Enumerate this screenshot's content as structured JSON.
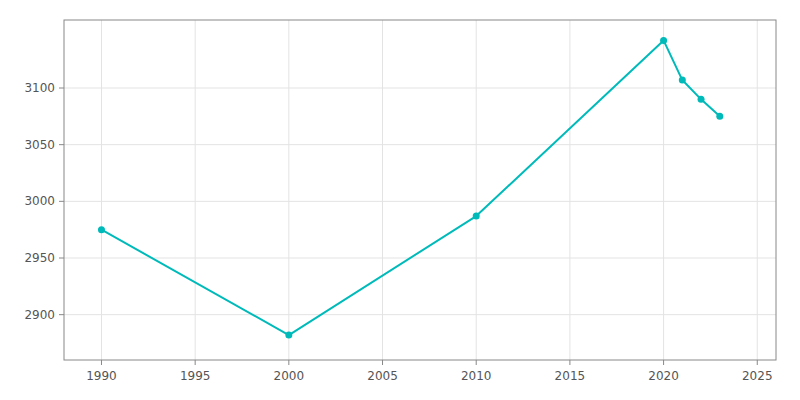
{
  "chart_data": {
    "type": "line",
    "x": [
      1990,
      2000,
      2010,
      2020,
      2021,
      2022,
      2023
    ],
    "values": [
      2975,
      2882,
      2987,
      3142,
      3107,
      3090,
      3075
    ],
    "color": "#00BABA",
    "marker": "circle",
    "xlim": [
      1988,
      2026
    ],
    "ylim": [
      2860,
      3160
    ],
    "xticks": [
      1990,
      1995,
      2000,
      2005,
      2010,
      2015,
      2020,
      2025
    ],
    "yticks": [
      2900,
      2950,
      3000,
      3050,
      3100
    ],
    "grid": true
  }
}
